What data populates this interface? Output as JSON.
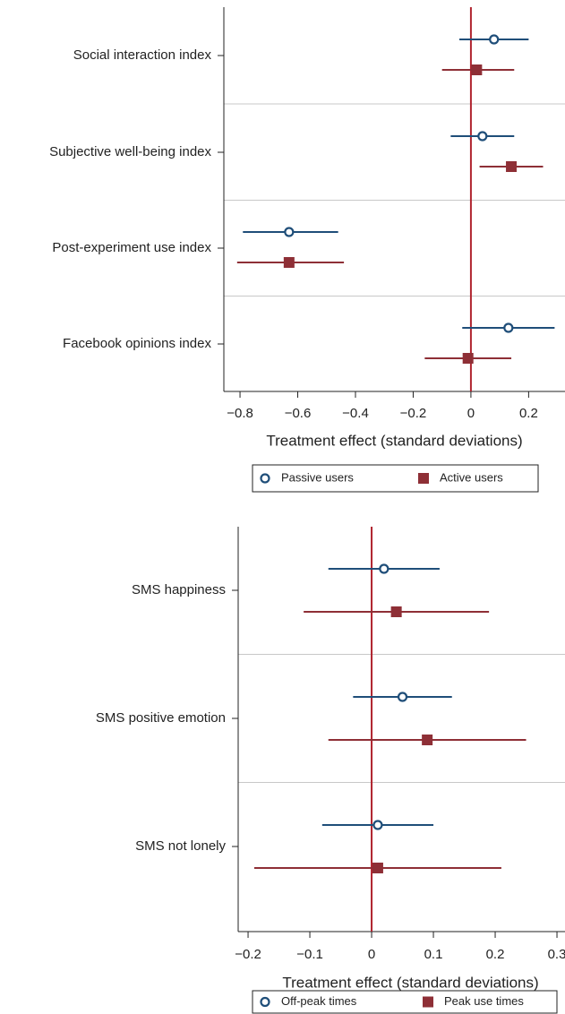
{
  "chart_data": [
    {
      "type": "errorbar",
      "categories": [
        "Social interaction index",
        "Subjective well-being index",
        "Post-experiment use index",
        "Facebook opinions index"
      ],
      "series": [
        {
          "name": "Passive users",
          "color": "#1f4e79",
          "marker": "hollow-circle",
          "values": [
            0.08,
            0.04,
            -0.63,
            0.13
          ],
          "lower": [
            -0.04,
            -0.07,
            -0.79,
            -0.03
          ],
          "upper": [
            0.2,
            0.15,
            -0.46,
            0.29
          ]
        },
        {
          "name": "Active users",
          "color": "#8e2f36",
          "marker": "square",
          "values": [
            0.02,
            0.14,
            -0.63,
            -0.01
          ],
          "lower": [
            -0.1,
            0.03,
            -0.81,
            -0.16
          ],
          "upper": [
            0.15,
            0.25,
            -0.44,
            0.14
          ]
        }
      ],
      "x_label": "Treatment effect (standard deviations)",
      "xlim": [
        -0.856,
        0.326
      ],
      "xticks": [
        {
          "value": -0.8,
          "label": "−0.8"
        },
        {
          "value": -0.6,
          "label": "−0.6"
        },
        {
          "value": -0.4,
          "label": "−0.4"
        },
        {
          "value": -0.2,
          "label": "−0.2"
        },
        0,
        0.2
      ],
      "reference_line": 0,
      "reference_color": "#b0242f"
    },
    {
      "type": "errorbar",
      "categories": [
        "SMS happiness",
        "SMS positive emotion",
        "SMS not lonely"
      ],
      "series": [
        {
          "name": "Off-peak times",
          "color": "#1f4e79",
          "marker": "hollow-circle",
          "values": [
            0.02,
            0.05,
            0.01
          ],
          "lower": [
            -0.07,
            -0.03,
            -0.08
          ],
          "upper": [
            0.11,
            0.13,
            0.1
          ]
        },
        {
          "name": "Peak use times",
          "color": "#8e2f36",
          "marker": "square",
          "values": [
            0.04,
            0.09,
            0.01
          ],
          "lower": [
            -0.11,
            -0.07,
            -0.19
          ],
          "upper": [
            0.19,
            0.25,
            0.21
          ]
        }
      ],
      "x_label": "Treatment effect (standard deviations)",
      "xlim": [
        -0.216,
        0.313
      ],
      "xticks": [
        {
          "value": -0.2,
          "label": "−0.2"
        },
        {
          "value": -0.1,
          "label": "−0.1"
        },
        0,
        0.1,
        0.2,
        0.3
      ],
      "reference_line": 0,
      "reference_color": "#b0242f"
    }
  ]
}
